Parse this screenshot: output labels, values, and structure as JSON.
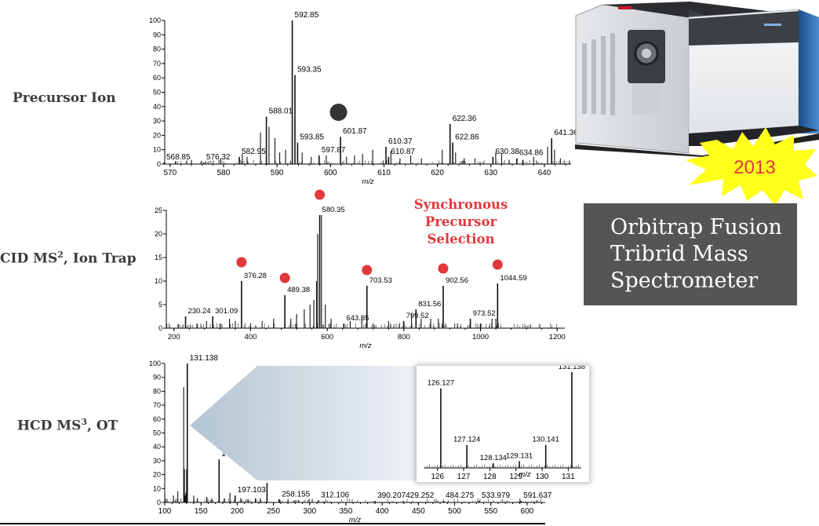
{
  "labels": {
    "precursor": "Precursor Ion",
    "cid_prefix": "CID MS",
    "cid_sup": "2",
    "cid_suffix": ", Ion Trap",
    "hcd_prefix": "HCD MS",
    "hcd_sup": "3",
    "hcd_suffix": ", OT"
  },
  "sync_label": [
    "Synchronous",
    "Precursor",
    "Selection"
  ],
  "burst_text": "2013",
  "info_box": [
    "Orbitrap Fusion",
    "Tribrid Mass",
    "Spectrometer"
  ],
  "colors": {
    "marker_red": "#e0383c",
    "marker_gray": "#333333",
    "box_bg": "#555555",
    "burst": "#ffff1a"
  },
  "chart_data": [
    {
      "type": "bar",
      "name": "precursor-spectrum",
      "xlabel": "m/z",
      "xlim": [
        569,
        645
      ],
      "ylim": [
        0,
        100
      ],
      "xticks": [
        570,
        580,
        590,
        600,
        610,
        620,
        630,
        640
      ],
      "yticks": [
        0,
        10,
        20,
        30,
        40,
        50,
        60,
        70,
        80,
        90,
        100
      ],
      "peaks": [
        {
          "x": 568.85,
          "y": 1,
          "label": "568.85"
        },
        {
          "x": 576.32,
          "y": 1,
          "label": "576.32"
        },
        {
          "x": 582.95,
          "y": 5,
          "label": "582.95"
        },
        {
          "x": 588.01,
          "y": 33,
          "label": "588.01"
        },
        {
          "x": 592.85,
          "y": 100,
          "label": "592.85"
        },
        {
          "x": 593.35,
          "y": 62,
          "label": "593.35"
        },
        {
          "x": 593.85,
          "y": 15,
          "label": "593.85"
        },
        {
          "x": 597.87,
          "y": 6,
          "label": "597.87"
        },
        {
          "x": 601.87,
          "y": 19,
          "label": "601.87"
        },
        {
          "x": 610.37,
          "y": 12,
          "label": "610.37"
        },
        {
          "x": 610.87,
          "y": 5,
          "label": "610.87"
        },
        {
          "x": 622.36,
          "y": 28,
          "label": "622.36"
        },
        {
          "x": 622.86,
          "y": 15,
          "label": "622.86"
        },
        {
          "x": 630.38,
          "y": 5,
          "label": "630.38"
        },
        {
          "x": 634.86,
          "y": 4,
          "label": "634.86"
        },
        {
          "x": 641.36,
          "y": 18,
          "label": "641.36"
        },
        {
          "x": 571,
          "y": 2
        },
        {
          "x": 574,
          "y": 3
        },
        {
          "x": 579.5,
          "y": 4
        },
        {
          "x": 583.5,
          "y": 7
        },
        {
          "x": 584.4,
          "y": 5
        },
        {
          "x": 586.9,
          "y": 22
        },
        {
          "x": 588.5,
          "y": 26
        },
        {
          "x": 589.6,
          "y": 18
        },
        {
          "x": 590.5,
          "y": 8
        },
        {
          "x": 591.6,
          "y": 10
        },
        {
          "x": 594.7,
          "y": 8
        },
        {
          "x": 596.4,
          "y": 5
        },
        {
          "x": 599.2,
          "y": 6
        },
        {
          "x": 603,
          "y": 5
        },
        {
          "x": 604.5,
          "y": 6
        },
        {
          "x": 606,
          "y": 7
        },
        {
          "x": 607.9,
          "y": 10
        },
        {
          "x": 611.3,
          "y": 9
        },
        {
          "x": 613,
          "y": 4
        },
        {
          "x": 615,
          "y": 6
        },
        {
          "x": 617,
          "y": 4
        },
        {
          "x": 620.9,
          "y": 10
        },
        {
          "x": 623.4,
          "y": 8
        },
        {
          "x": 625,
          "y": 4
        },
        {
          "x": 627,
          "y": 4
        },
        {
          "x": 630.9,
          "y": 8
        },
        {
          "x": 632,
          "y": 7
        },
        {
          "x": 633.4,
          "y": 3
        },
        {
          "x": 636,
          "y": 3
        },
        {
          "x": 638,
          "y": 5
        },
        {
          "x": 640.6,
          "y": 12
        },
        {
          "x": 641.9,
          "y": 10
        },
        {
          "x": 643,
          "y": 4
        }
      ],
      "markers": [
        {
          "x": 601.5,
          "color": "gray"
        }
      ]
    },
    {
      "type": "bar",
      "name": "cid-ms2-spectrum",
      "xlabel": "m/z",
      "xlim": [
        180,
        1220
      ],
      "ylim": [
        0,
        25
      ],
      "xticks": [
        200,
        400,
        600,
        800,
        1000,
        1200
      ],
      "yticks": [
        0,
        5,
        10,
        15,
        20,
        25
      ],
      "peaks": [
        {
          "x": 230.24,
          "y": 2.5,
          "label": "230.24"
        },
        {
          "x": 301.09,
          "y": 2.5,
          "label": "301.09"
        },
        {
          "x": 376.28,
          "y": 10,
          "label": "376.28"
        },
        {
          "x": 489.38,
          "y": 7,
          "label": "489.38"
        },
        {
          "x": 580.35,
          "y": 24,
          "label": "580.35"
        },
        {
          "x": 643.35,
          "y": 1,
          "label": "643.35"
        },
        {
          "x": 703.53,
          "y": 9,
          "label": "703.53"
        },
        {
          "x": 799.52,
          "y": 1.5,
          "label": "799.52"
        },
        {
          "x": 831.56,
          "y": 4,
          "label": "831.56"
        },
        {
          "x": 902.56,
          "y": 9,
          "label": "902.56"
        },
        {
          "x": 973.52,
          "y": 2,
          "label": "973.52"
        },
        {
          "x": 1044.59,
          "y": 9.5,
          "label": "1044.59"
        },
        {
          "x": 260,
          "y": 1
        },
        {
          "x": 285,
          "y": 1.5
        },
        {
          "x": 320,
          "y": 1
        },
        {
          "x": 345,
          "y": 2
        },
        {
          "x": 360,
          "y": 1.5
        },
        {
          "x": 400,
          "y": 1
        },
        {
          "x": 430,
          "y": 1.5
        },
        {
          "x": 460,
          "y": 2
        },
        {
          "x": 505,
          "y": 2
        },
        {
          "x": 520,
          "y": 3
        },
        {
          "x": 540,
          "y": 4
        },
        {
          "x": 555,
          "y": 5
        },
        {
          "x": 565,
          "y": 6
        },
        {
          "x": 572,
          "y": 10
        },
        {
          "x": 575,
          "y": 20
        },
        {
          "x": 585,
          "y": 24
        },
        {
          "x": 595,
          "y": 5
        },
        {
          "x": 610,
          "y": 2
        },
        {
          "x": 660,
          "y": 1.5
        },
        {
          "x": 690,
          "y": 2.5
        },
        {
          "x": 720,
          "y": 1
        },
        {
          "x": 760,
          "y": 1.5
        },
        {
          "x": 820,
          "y": 3
        },
        {
          "x": 845,
          "y": 2
        },
        {
          "x": 870,
          "y": 2
        },
        {
          "x": 890,
          "y": 2
        },
        {
          "x": 940,
          "y": 1
        },
        {
          "x": 1000,
          "y": 1
        },
        {
          "x": 1030,
          "y": 2
        },
        {
          "x": 1040,
          "y": 2
        }
      ],
      "markers": [
        {
          "x": 376.28,
          "color": "red"
        },
        {
          "x": 489.38,
          "color": "red"
        },
        {
          "x": 580.35,
          "color": "red"
        },
        {
          "x": 703.53,
          "color": "red"
        },
        {
          "x": 902.56,
          "color": "red"
        },
        {
          "x": 1044.59,
          "color": "red"
        }
      ]
    },
    {
      "type": "bar",
      "name": "hcd-ms3-spectrum",
      "xlabel": "m/z",
      "xlim": [
        100,
        625
      ],
      "ylim": [
        0,
        100
      ],
      "xticks": [
        100,
        150,
        200,
        250,
        300,
        350,
        400,
        450,
        500,
        550,
        600
      ],
      "yticks": [
        0,
        10,
        20,
        30,
        40,
        50,
        60,
        70,
        80,
        90,
        100
      ],
      "peaks": [
        {
          "x": 131.138,
          "y": 100,
          "label": "131.138"
        },
        {
          "x": 126.127,
          "y": 83
        },
        {
          "x": 127.124,
          "y": 24
        },
        {
          "x": 128.134,
          "y": 5
        },
        {
          "x": 129.131,
          "y": 7
        },
        {
          "x": 130.141,
          "y": 24
        },
        {
          "x": 175.017,
          "y": 31,
          "label": "175.017"
        },
        {
          "x": 197.103,
          "y": 5,
          "label": "197.103"
        },
        {
          "x": 241.129,
          "y": 14,
          "label": "241.129"
        },
        {
          "x": 258.155,
          "y": 2,
          "label": "258.155"
        },
        {
          "x": 312.106,
          "y": 1.5,
          "label": "312.106"
        },
        {
          "x": 390.207,
          "y": 1,
          "label": "390.207"
        },
        {
          "x": 429.252,
          "y": 1,
          "label": "429.252"
        },
        {
          "x": 484.275,
          "y": 1,
          "label": "484.275"
        },
        {
          "x": 533.979,
          "y": 1,
          "label": "533.979"
        },
        {
          "x": 591.637,
          "y": 1,
          "label": "591.637"
        },
        {
          "x": 112,
          "y": 5
        },
        {
          "x": 118,
          "y": 8
        },
        {
          "x": 140,
          "y": 5
        },
        {
          "x": 145,
          "y": 3
        },
        {
          "x": 158,
          "y": 4
        },
        {
          "x": 165,
          "y": 3
        },
        {
          "x": 182,
          "y": 3
        },
        {
          "x": 190,
          "y": 7
        },
        {
          "x": 205,
          "y": 3
        },
        {
          "x": 215,
          "y": 2
        },
        {
          "x": 225,
          "y": 3
        },
        {
          "x": 232,
          "y": 3
        },
        {
          "x": 270,
          "y": 2
        },
        {
          "x": 285,
          "y": 1.5
        }
      ]
    },
    {
      "type": "bar",
      "name": "reporter-ion-inset",
      "xlabel": "m/z",
      "xlim": [
        125.5,
        131.5
      ],
      "ylim": [
        0,
        100
      ],
      "xticks": [
        126,
        127,
        128,
        129,
        130,
        131
      ],
      "peaks": [
        {
          "x": 126.127,
          "y": 83,
          "label": "126.127"
        },
        {
          "x": 127.124,
          "y": 24,
          "label": "127.124"
        },
        {
          "x": 128.134,
          "y": 5,
          "label": "128.134"
        },
        {
          "x": 129.131,
          "y": 7,
          "label": "129.131"
        },
        {
          "x": 130.141,
          "y": 24,
          "label": "130.141"
        },
        {
          "x": 131.138,
          "y": 100,
          "label": "131.138"
        }
      ]
    }
  ]
}
